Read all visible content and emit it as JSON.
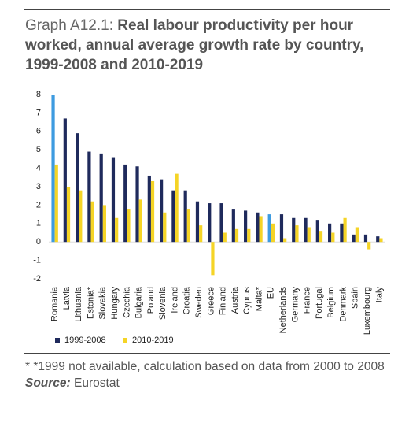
{
  "title_label": "Graph A12.1:",
  "chart_data": {
    "type": "bar",
    "title": "Real labour productivity per hour worked, annual average growth rate by country, 1999-2008 and 2010-2019",
    "categories": [
      "Romania",
      "Latvia",
      "Lithuania",
      "Estonia*",
      "Slovakia",
      "Hungary",
      "Czechia",
      "Bulgaria",
      "Poland",
      "Slovenia",
      "Ireland",
      "Croatia",
      "Sweden",
      "Greece",
      "Finland",
      "Austria",
      "Cyprus",
      "Malta*",
      "EU",
      "Netherlands",
      "Germany",
      "France",
      "Portugal",
      "Belgium",
      "Denmark",
      "Spain",
      "Luxembourg",
      "Italy"
    ],
    "series": [
      {
        "name": "1999-2008",
        "color": "#1f2a5c",
        "highlight": {
          "indices": [
            0,
            18
          ],
          "color": "#3d9be0"
        },
        "values": [
          8.0,
          6.7,
          5.9,
          4.9,
          4.8,
          4.6,
          4.2,
          4.1,
          3.6,
          3.4,
          2.8,
          2.8,
          2.2,
          2.1,
          2.1,
          1.8,
          1.7,
          1.6,
          1.5,
          1.5,
          1.3,
          1.3,
          1.2,
          1.0,
          1.0,
          0.4,
          0.4,
          0.3
        ]
      },
      {
        "name": "2010-2019",
        "color": "#f5d426",
        "values": [
          4.2,
          3.0,
          2.8,
          2.2,
          2.0,
          1.3,
          1.8,
          2.3,
          3.3,
          1.6,
          3.7,
          1.8,
          0.9,
          -1.8,
          0.5,
          0.7,
          0.7,
          1.4,
          1.0,
          0.2,
          0.9,
          0.8,
          0.6,
          0.5,
          1.3,
          0.8,
          -0.4,
          0.2
        ]
      }
    ],
    "ylim": [
      -2,
      8
    ],
    "yticks": [
      8,
      7,
      6,
      5,
      4,
      3,
      2,
      1,
      0,
      -1,
      -2
    ],
    "legend": "bottom"
  },
  "footnote": "* *1999 not available, calculation based on data from 2000 to 2008",
  "source": {
    "label": "Source:",
    "text": "Eurostat"
  }
}
